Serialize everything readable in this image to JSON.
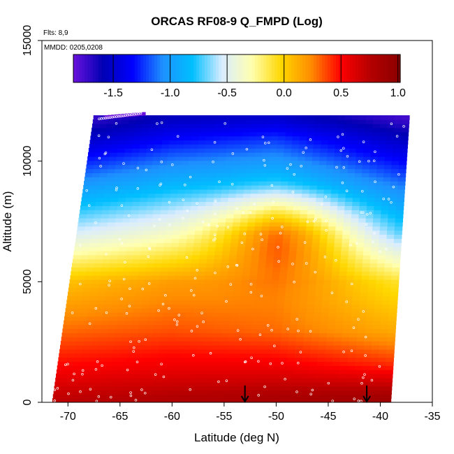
{
  "chart_data": {
    "type": "heatmap",
    "title": "ORCAS RF08-9 Q_FMPD (Log)",
    "annotations": {
      "flights": "Flts: 8,9",
      "dates": "MMDD: 0205,0208"
    },
    "xlabel": "Latitude (deg N)",
    "ylabel": "Altitude (m)",
    "xlim": [
      -72.5,
      -35
    ],
    "ylim": [
      0,
      15000
    ],
    "xticks": [
      -70,
      -65,
      -60,
      -55,
      -50,
      -45,
      -40,
      -35
    ],
    "yticks": [
      0,
      5000,
      10000,
      15000
    ],
    "colorbar": {
      "label_ticks": [
        -1.5,
        -1.0,
        -0.5,
        0.0,
        0.5,
        1.0
      ],
      "tick_labels": [
        "-1.5",
        "-1.0",
        "-0.5",
        "0.0",
        "0.5",
        "1.0"
      ],
      "range": [
        -1.85,
        1.02
      ],
      "divider_values": [
        -1.5,
        -1.0,
        -0.5,
        0.0,
        0.5,
        1.0
      ],
      "colors": [
        "#6a12dc",
        "#0000b4",
        "#0000ff",
        "#1e90ff",
        "#00bfff",
        "#d9ecff",
        "#ffffb0",
        "#ffd700",
        "#ff8c00",
        "#ff0000",
        "#b40000",
        "#8b0000"
      ]
    },
    "field": {
      "description_levels": [
        {
          "alt": 200,
          "values_by_lat": {
            "-71": 0.72,
            "-60": 0.78,
            "-50": 0.82,
            "-40": 0.88
          }
        },
        {
          "alt": 1500,
          "values_by_lat": {
            "-71": 0.5,
            "-60": 0.55,
            "-50": 0.55,
            "-40": 0.45
          }
        },
        {
          "alt": 3000,
          "values_by_lat": {
            "-71": 0.3,
            "-60": 0.35,
            "-50": 0.3,
            "-40": 0.15
          }
        },
        {
          "alt": 5000,
          "values_by_lat": {
            "-71": 0.05,
            "-60": 0.18,
            "-50": 0.18,
            "-40": -0.05
          }
        },
        {
          "alt": 7000,
          "values_by_lat": {
            "-71": -0.55,
            "-60": -0.35,
            "-50": -0.05,
            "-40": -0.6
          }
        },
        {
          "alt": 9000,
          "values_by_lat": {
            "-71": -1.05,
            "-60": -0.85,
            "-50": -0.8,
            "-40": -1.05
          }
        },
        {
          "alt": 11000,
          "values_by_lat": {
            "-71": -1.6,
            "-60": -1.35,
            "-50": -1.25,
            "-40": -1.5
          }
        },
        {
          "alt": 11800,
          "values_by_lat": {
            "-71": -1.8,
            "-60": -1.55,
            "-50": -1.5,
            "-40": -1.7
          }
        }
      ],
      "lat_extent": [
        -71.5,
        -37.5
      ],
      "alt_extent": [
        0,
        11900
      ]
    },
    "markers": [
      {
        "type": "arrow-down",
        "lat": -53,
        "alt_top": 700
      },
      {
        "type": "arrow-down",
        "lat": -41.3,
        "alt_top": 700
      }
    ],
    "grid": false,
    "legend": "colorbar-top"
  }
}
